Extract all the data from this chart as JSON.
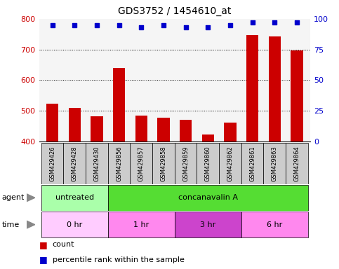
{
  "title": "GDS3752 / 1454610_at",
  "samples": [
    "GSM429426",
    "GSM429428",
    "GSM429430",
    "GSM429856",
    "GSM429857",
    "GSM429858",
    "GSM429859",
    "GSM429860",
    "GSM429862",
    "GSM429861",
    "GSM429863",
    "GSM429864"
  ],
  "counts": [
    522,
    508,
    482,
    640,
    484,
    477,
    470,
    422,
    462,
    748,
    742,
    697
  ],
  "percentile_ranks": [
    95,
    95,
    95,
    95,
    93,
    95,
    93,
    93,
    95,
    97,
    97,
    97
  ],
  "ylim_left": [
    400,
    800
  ],
  "ylim_right": [
    0,
    100
  ],
  "yticks_left": [
    400,
    500,
    600,
    700,
    800
  ],
  "yticks_right": [
    0,
    25,
    50,
    75,
    100
  ],
  "bar_color": "#cc0000",
  "dot_color": "#0000cc",
  "agent_groups": [
    {
      "label": "untreated",
      "start": 0,
      "end": 3,
      "color": "#aaffaa"
    },
    {
      "label": "concanavalin A",
      "start": 3,
      "end": 12,
      "color": "#55dd33"
    }
  ],
  "time_groups": [
    {
      "label": "0 hr",
      "start": 0,
      "end": 3,
      "color": "#ffccff"
    },
    {
      "label": "1 hr",
      "start": 3,
      "end": 6,
      "color": "#ff88ee"
    },
    {
      "label": "3 hr",
      "start": 6,
      "end": 9,
      "color": "#cc44cc"
    },
    {
      "label": "6 hr",
      "start": 9,
      "end": 12,
      "color": "#ff88ee"
    }
  ],
  "left_axis_color": "#cc0000",
  "right_axis_color": "#0000cc",
  "plot_bg_color": "#f5f5f5",
  "bar_width": 0.55,
  "label_fontsize": 8,
  "sample_fontsize": 6,
  "annotation_fontsize": 8
}
